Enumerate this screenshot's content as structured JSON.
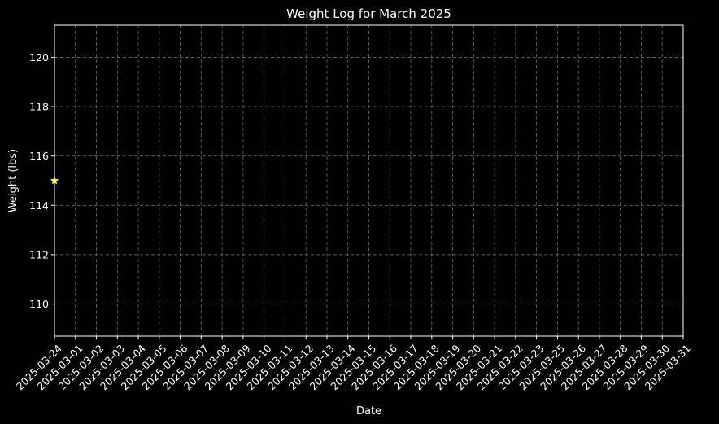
{
  "chart_data": {
    "type": "scatter",
    "title": "Weight Log for March 2025",
    "xlabel": "Date",
    "ylabel": "Weight (lbs)",
    "x_tick_labels": [
      "2025-03-24",
      "2025-03-01",
      "2025-03-02",
      "2025-03-03",
      "2025-03-04",
      "2025-03-05",
      "2025-03-06",
      "2025-03-07",
      "2025-03-08",
      "2025-03-09",
      "2025-03-10",
      "2025-03-11",
      "2025-03-12",
      "2025-03-13",
      "2025-03-14",
      "2025-03-15",
      "2025-03-16",
      "2025-03-17",
      "2025-03-18",
      "2025-03-19",
      "2025-03-20",
      "2025-03-21",
      "2025-03-22",
      "2025-03-23",
      "2025-03-25",
      "2025-03-26",
      "2025-03-27",
      "2025-03-28",
      "2025-03-29",
      "2025-03-30",
      "2025-03-31"
    ],
    "y_ticks": [
      110,
      112,
      114,
      116,
      118,
      120
    ],
    "ylim": [
      108.7,
      121.3
    ],
    "grid": true,
    "points": [
      {
        "x": "2025-03-24",
        "y": 115.0
      }
    ],
    "colors": {
      "background": "#000000",
      "foreground": "#ffffff",
      "grid": "#6e6e6e",
      "marker": "#ffff33"
    }
  }
}
